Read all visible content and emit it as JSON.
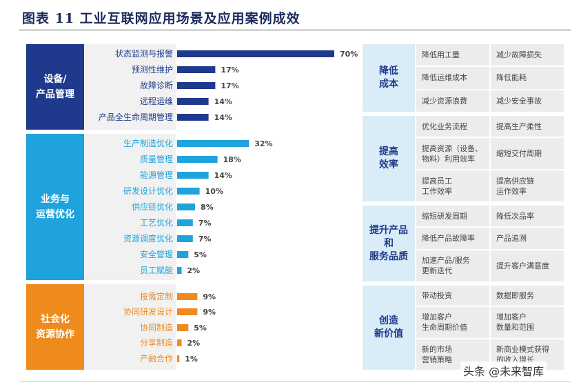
{
  "title": "图表 11 工业互联网应用场景及应用案例成效",
  "watermark": "头条 @未来智库",
  "groups": [
    {
      "label": "设备/\n产品管理",
      "color": "#1f3a8c"
    },
    {
      "label": "业务与\n运营优化",
      "color": "#1ea3dc"
    },
    {
      "label": "社会化\n资源协作",
      "color": "#ef8a1d"
    }
  ],
  "chart_data": {
    "type": "bar",
    "categories": [
      "状态监测与报警",
      "预测性维护",
      "故障诊断",
      "远程运维",
      "产品全生命周期管理",
      "生产制造优化",
      "质量管理",
      "能源管理",
      "研发设计优化",
      "供应链优化",
      "工艺优化",
      "资源调度优化",
      "安全管理",
      "员工赋能",
      "按需定制",
      "协同研发设计",
      "协同制造",
      "分享制造",
      "产融合作"
    ],
    "values": [
      70,
      17,
      17,
      14,
      14,
      32,
      18,
      14,
      10,
      8,
      7,
      7,
      5,
      2,
      9,
      9,
      5,
      2,
      1
    ],
    "value_labels": [
      "70%",
      "17%",
      "17%",
      "14%",
      "14%",
      "32%",
      "18%",
      "14%",
      "10%",
      "8%",
      "7%",
      "7%",
      "5%",
      "2%",
      "9%",
      "9%",
      "5%",
      "2%",
      "1%"
    ],
    "group_index": [
      0,
      0,
      0,
      0,
      0,
      1,
      1,
      1,
      1,
      1,
      1,
      1,
      1,
      1,
      2,
      2,
      2,
      2,
      2
    ],
    "xlim": [
      0,
      70
    ]
  },
  "effects": [
    {
      "head": "降低\n成本",
      "head_bg": "#d9ecf7",
      "cells": [
        "降低用工量",
        "减少故障损失",
        "降低运维成本",
        "降低能耗",
        "减少资源浪费",
        "减少安全事故"
      ]
    },
    {
      "head": "提高\n效率",
      "head_bg": "#d9ecf7",
      "cells": [
        "优化业务流程",
        "提高生产柔性",
        "提高资源（设备、\n物料）利用效率",
        "缩短交付周期",
        "提高员工\n工作效率",
        "提高供应链\n运作效率"
      ]
    },
    {
      "head": "提升产品\n和\n服务品质",
      "head_bg": "#d9ecf7",
      "cells": [
        "缩短研发周期",
        "降低次品率",
        "降低产品故障率",
        "产品追溯",
        "加速产品/服务\n更新迭代",
        "提升客户满意度"
      ]
    },
    {
      "head": "创造\n新价值",
      "head_bg": "#d9ecf7",
      "cells": [
        "带动投资",
        "数据即服务",
        "增加客户\n生命周期价值",
        "增加客户\n数量和范围",
        "新的市场\n营销策略",
        "新商业模式获得\n的收入增长"
      ]
    }
  ]
}
